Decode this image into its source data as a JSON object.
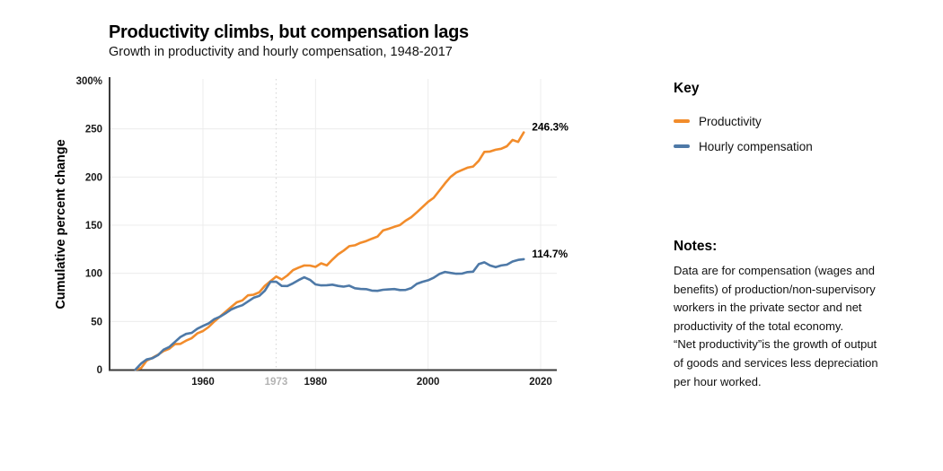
{
  "header": {
    "title": "Productivity climbs, but compensation lags",
    "subtitle": "Growth in productivity and hourly compensation, 1948-2017"
  },
  "key": {
    "heading": "Key",
    "items": [
      {
        "label": "Productivity",
        "color": "#F28C2B"
      },
      {
        "label": "Hourly compensation",
        "color": "#4E79A7"
      }
    ]
  },
  "notes": {
    "heading": "Notes:",
    "lines": [
      "Data are for compensation (wages and",
      "benefits) of production/non-supervisory",
      "workers in the private sector and net",
      "productivity of the total economy.",
      "“Net productivity”is the growth of output",
      "of goods and services less depreciation",
      "per hour worked."
    ]
  },
  "chart_data": {
    "type": "line",
    "title": "Productivity climbs, but compensation lags",
    "subtitle": "Growth in productivity and hourly compensation, 1948-2017",
    "xlabel": "",
    "ylabel": "Cumulative percent change",
    "xlim": [
      1943,
      2023
    ],
    "ylim": [
      0,
      300
    ],
    "grid": true,
    "legend_position": "right",
    "x": [
      1948,
      1949,
      1950,
      1951,
      1952,
      1953,
      1954,
      1955,
      1956,
      1957,
      1958,
      1959,
      1960,
      1961,
      1962,
      1963,
      1964,
      1965,
      1966,
      1967,
      1968,
      1969,
      1970,
      1971,
      1972,
      1973,
      1974,
      1975,
      1976,
      1977,
      1978,
      1979,
      1980,
      1981,
      1982,
      1983,
      1984,
      1985,
      1986,
      1987,
      1988,
      1989,
      1990,
      1991,
      1992,
      1993,
      1994,
      1995,
      1996,
      1997,
      1998,
      1999,
      2000,
      2001,
      2002,
      2003,
      2004,
      2005,
      2006,
      2007,
      2008,
      2009,
      2010,
      2011,
      2012,
      2013,
      2014,
      2015,
      2016,
      2017
    ],
    "series": [
      {
        "name": "Productivity",
        "color": "#F28C2B",
        "end_label": "246.3%",
        "end_value": 246.3,
        "values": [
          0.0,
          1.6,
          9.3,
          12.2,
          15.5,
          19.3,
          21.6,
          26.5,
          26.7,
          30.1,
          32.7,
          37.6,
          40.1,
          44.3,
          49.8,
          55.0,
          60.0,
          64.9,
          69.9,
          71.9,
          77.1,
          77.8,
          80.3,
          87.0,
          91.9,
          96.7,
          93.6,
          97.8,
          103.3,
          105.9,
          108.2,
          108.1,
          106.7,
          110.4,
          108.3,
          114.2,
          119.7,
          123.6,
          128.2,
          129.1,
          131.7,
          133.5,
          135.9,
          138.2,
          144.5,
          146.3,
          148.3,
          150.1,
          154.7,
          158.3,
          163.3,
          168.8,
          174.3,
          178.4,
          185.9,
          193.4,
          200.1,
          204.7,
          207.2,
          209.7,
          210.9,
          216.9,
          226.1,
          226.5,
          228.4,
          229.4,
          232.0,
          238.5,
          236.5,
          246.3
        ]
      },
      {
        "name": "Hourly compensation",
        "color": "#4E79A7",
        "end_label": "114.7%",
        "end_value": 114.7,
        "values": [
          0.0,
          6.3,
          10.5,
          11.8,
          15.0,
          20.7,
          23.5,
          28.7,
          33.9,
          37.1,
          38.2,
          42.5,
          45.4,
          48.0,
          52.4,
          54.9,
          58.4,
          62.4,
          64.9,
          66.9,
          70.7,
          74.6,
          76.6,
          82.0,
          91.2,
          91.3,
          86.9,
          86.8,
          89.6,
          93.0,
          95.9,
          93.3,
          88.5,
          87.5,
          87.7,
          88.2,
          86.9,
          86.2,
          87.2,
          84.5,
          83.8,
          83.6,
          82.1,
          81.8,
          82.9,
          83.3,
          83.7,
          82.6,
          82.7,
          84.7,
          89.1,
          91.2,
          92.8,
          95.4,
          99.3,
          101.5,
          100.4,
          99.6,
          99.7,
          101.3,
          101.7,
          109.6,
          111.4,
          108.2,
          106.4,
          108.2,
          109.0,
          112.3,
          113.9,
          114.7
        ]
      }
    ],
    "xticks": [
      {
        "label": "1960",
        "year": 1960,
        "muted": false
      },
      {
        "label": "1973",
        "year": 1973,
        "muted": true
      },
      {
        "label": "1980",
        "year": 1980,
        "muted": false
      },
      {
        "label": "2000",
        "year": 2000,
        "muted": false
      },
      {
        "label": "2020",
        "year": 2020,
        "muted": false
      }
    ],
    "yticks": [
      {
        "label": "0",
        "value": 0
      },
      {
        "label": "50",
        "value": 50
      },
      {
        "label": "100",
        "value": 100
      },
      {
        "label": "150",
        "value": 150
      },
      {
        "label": "200",
        "value": 200
      },
      {
        "label": "250",
        "value": 250
      },
      {
        "label": "300%",
        "value": 300
      }
    ]
  }
}
